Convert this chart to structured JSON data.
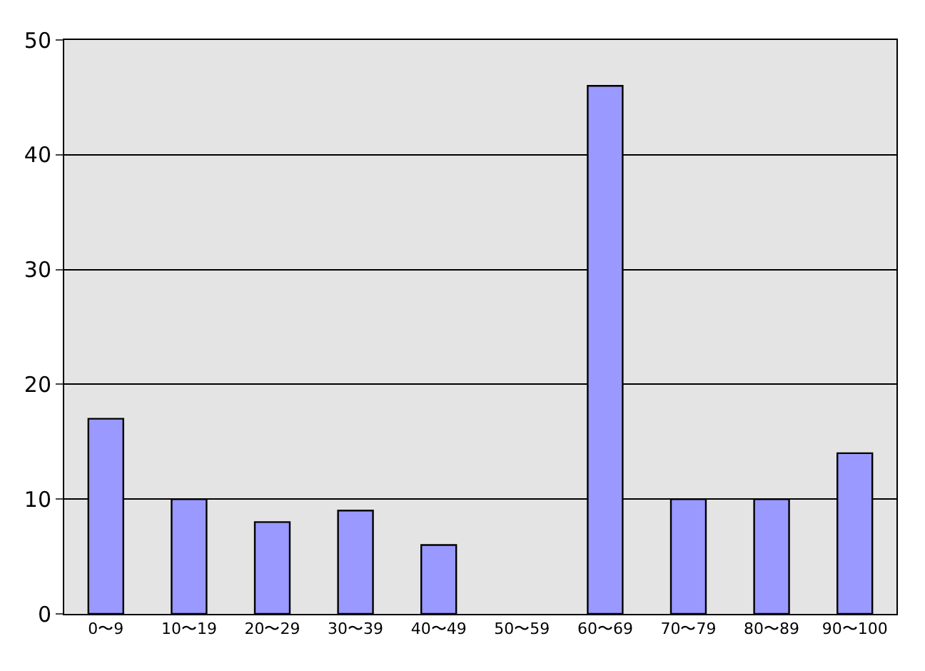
{
  "chart_data": {
    "type": "bar",
    "categories": [
      "0〜9",
      "10〜19",
      "20〜29",
      "30〜39",
      "40〜49",
      "50〜59",
      "60〜69",
      "70〜79",
      "80〜89",
      "90〜100"
    ],
    "values": [
      17,
      10,
      8,
      9,
      6,
      0,
      46,
      10,
      10,
      14
    ],
    "color": "#9999ff",
    "ylim": [
      0,
      50
    ],
    "yticks": [
      0,
      10,
      20,
      30,
      40,
      50
    ],
    "grid": "y"
  }
}
